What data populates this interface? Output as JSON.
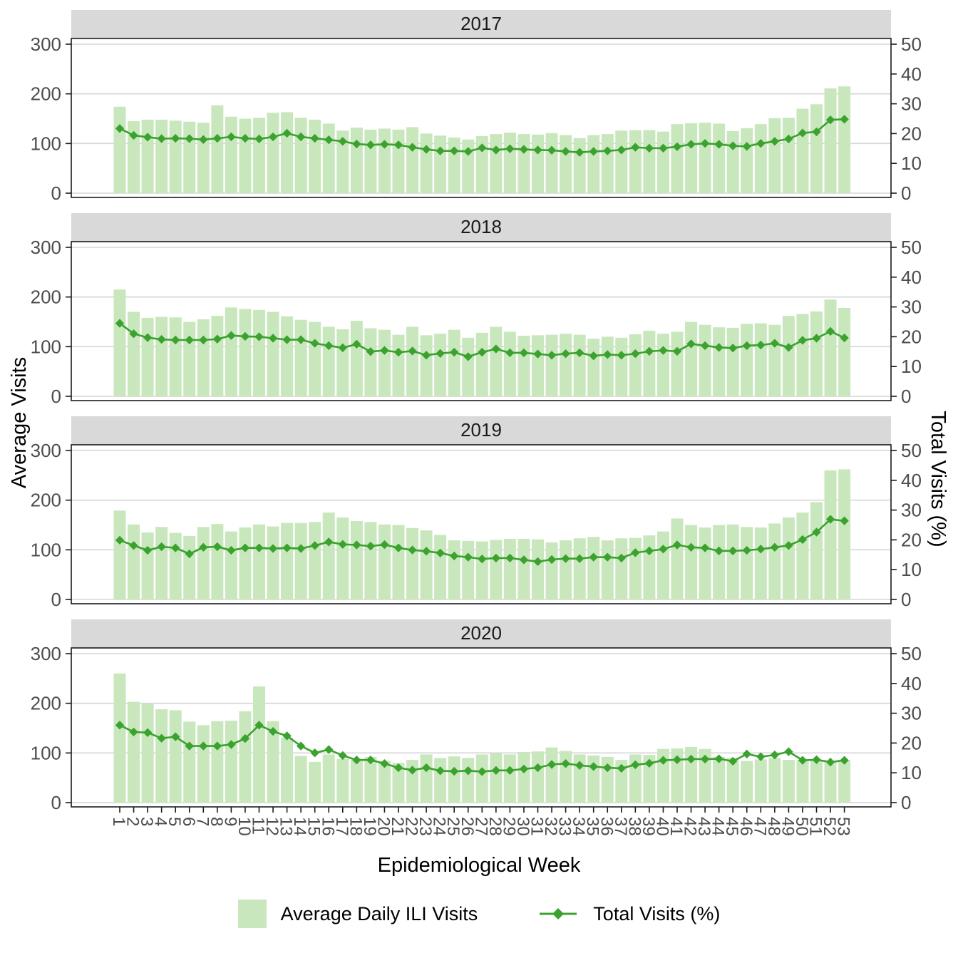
{
  "chart_data": {
    "type": "bar",
    "subtype": "faceted bar + line (dual axis)",
    "facet_titles": [
      "2017",
      "2018",
      "2019",
      "2020"
    ],
    "x": {
      "label": "Epidemiological Week",
      "ticks": [
        "1",
        "2",
        "3",
        "4",
        "5",
        "6",
        "7",
        "8",
        "9",
        "10",
        "11",
        "12",
        "13",
        "14",
        "15",
        "16",
        "17",
        "18",
        "19",
        "20",
        "21",
        "22",
        "23",
        "24",
        "25",
        "26",
        "27",
        "28",
        "29",
        "30",
        "31",
        "32",
        "33",
        "34",
        "35",
        "36",
        "37",
        "38",
        "39",
        "40",
        "41",
        "42",
        "43",
        "44",
        "45",
        "46",
        "47",
        "48",
        "49",
        "50",
        "51",
        "52",
        "53"
      ]
    },
    "y_left": {
      "label": "Average Visits",
      "ticks": [
        0,
        100,
        200,
        300
      ],
      "lim": [
        0,
        300
      ]
    },
    "y_right": {
      "label": "Total Visits (%)",
      "ticks": [
        0,
        10,
        20,
        30,
        40,
        50
      ],
      "lim": [
        0,
        50
      ]
    },
    "legend": {
      "bar_label": "Average Daily ILI Visits",
      "line_label": "Total Visits (%)"
    },
    "legend_position": "bottom",
    "grid": "horizontal major only",
    "facets": [
      {
        "year": "2017",
        "avg_daily_ili_visits": [
          174,
          145,
          148,
          148,
          146,
          144,
          142,
          177,
          154,
          150,
          152,
          162,
          163,
          152,
          148,
          140,
          126,
          132,
          128,
          130,
          128,
          133,
          120,
          116,
          112,
          108,
          115,
          119,
          122,
          119,
          118,
          121,
          117,
          111,
          117,
          119,
          126,
          127,
          127,
          124,
          139,
          141,
          142,
          140,
          125,
          131,
          139,
          151,
          152,
          170,
          179,
          211,
          215
        ],
        "total_visits_pct": [
          21.7,
          19.4,
          18.8,
          18.3,
          18.4,
          18.3,
          18.0,
          18.4,
          18.9,
          18.4,
          18.2,
          18.9,
          20.1,
          18.9,
          18.4,
          17.9,
          17.4,
          16.5,
          16.2,
          16.4,
          16.2,
          15.4,
          14.7,
          14.2,
          14.2,
          14.0,
          15.2,
          14.5,
          14.9,
          14.7,
          14.5,
          14.4,
          14.0,
          13.7,
          14.0,
          14.2,
          14.5,
          15.4,
          15.1,
          15.1,
          15.6,
          16.4,
          16.7,
          16.4,
          15.9,
          15.7,
          16.7,
          17.4,
          18.2,
          20.2,
          20.6,
          24.6,
          24.8
        ]
      },
      {
        "year": "2018",
        "avg_daily_ili_visits": [
          215,
          170,
          158,
          160,
          159,
          150,
          155,
          162,
          179,
          176,
          174,
          170,
          161,
          154,
          150,
          140,
          135,
          152,
          137,
          134,
          124,
          140,
          123,
          126,
          134,
          118,
          128,
          140,
          130,
          122,
          123,
          124,
          126,
          124,
          116,
          120,
          118,
          125,
          132,
          126,
          130,
          150,
          144,
          139,
          138,
          146,
          147,
          144,
          162,
          166,
          171,
          195,
          178
        ],
        "total_visits_pct": [
          24.5,
          21.0,
          19.7,
          19.1,
          18.9,
          18.9,
          18.9,
          19.2,
          20.4,
          20.1,
          20.0,
          19.5,
          19.0,
          19.0,
          17.8,
          17.0,
          16.3,
          17.5,
          15.0,
          15.4,
          14.8,
          15.2,
          13.8,
          14.4,
          14.8,
          13.3,
          14.8,
          15.9,
          14.6,
          14.6,
          14.2,
          13.8,
          14.3,
          14.6,
          13.6,
          14.0,
          13.8,
          14.3,
          15.1,
          15.4,
          15.1,
          17.6,
          17.0,
          16.4,
          16.2,
          17.0,
          17.2,
          17.8,
          16.4,
          18.8,
          19.5,
          21.8,
          19.6
        ]
      },
      {
        "year": "2019",
        "avg_daily_ili_visits": [
          179,
          151,
          135,
          146,
          134,
          128,
          146,
          152,
          137,
          145,
          151,
          147,
          154,
          154,
          156,
          175,
          165,
          158,
          156,
          151,
          150,
          144,
          139,
          130,
          119,
          118,
          117,
          120,
          122,
          122,
          121,
          115,
          119,
          123,
          126,
          119,
          123,
          124,
          129,
          137,
          163,
          150,
          145,
          150,
          151,
          146,
          145,
          153,
          165,
          175,
          196,
          260,
          262
        ],
        "total_visits_pct": [
          19.9,
          18.1,
          16.5,
          17.7,
          17.3,
          15.3,
          17.5,
          17.7,
          16.5,
          17.3,
          17.3,
          17.1,
          17.3,
          17.1,
          18.1,
          19.3,
          18.5,
          18.3,
          17.9,
          18.4,
          17.3,
          16.6,
          16.2,
          15.6,
          14.6,
          14.2,
          13.6,
          13.9,
          13.9,
          13.3,
          12.7,
          13.4,
          13.7,
          13.7,
          14.2,
          14.2,
          13.9,
          15.7,
          16.3,
          16.9,
          18.3,
          17.5,
          17.3,
          16.3,
          16.3,
          16.5,
          16.9,
          17.5,
          18.1,
          20.1,
          22.6,
          26.9,
          26.4
        ]
      },
      {
        "year": "2020",
        "avg_daily_ili_visits": [
          260,
          203,
          200,
          188,
          186,
          163,
          156,
          164,
          165,
          184,
          234,
          164,
          131,
          94,
          82,
          97,
          88,
          87,
          92,
          84,
          80,
          86,
          97,
          90,
          93,
          90,
          97,
          99,
          97,
          102,
          103,
          111,
          104,
          97,
          95,
          92,
          86,
          97,
          96,
          108,
          109,
          112,
          108,
          92,
          90,
          84,
          87,
          90,
          86,
          85,
          85,
          84,
          86
        ],
        "total_visits_pct": [
          26.0,
          23.7,
          23.5,
          21.6,
          22.1,
          19.0,
          19.0,
          19.0,
          19.5,
          21.5,
          26.0,
          23.9,
          22.4,
          19.0,
          16.7,
          17.8,
          15.8,
          14.3,
          14.3,
          13.1,
          11.7,
          10.9,
          11.7,
          10.7,
          10.5,
          10.7,
          10.4,
          10.8,
          10.8,
          11.3,
          11.7,
          12.8,
          13.1,
          12.5,
          12.1,
          11.7,
          11.5,
          12.7,
          13.2,
          14.2,
          14.4,
          14.6,
          14.6,
          14.7,
          13.9,
          16.3,
          15.4,
          16.0,
          17.1,
          14.2,
          14.4,
          13.6,
          14.2
        ]
      }
    ]
  },
  "colors": {
    "bar_fill": "#c9e7bd",
    "line": "#3ba22f",
    "strip_bg": "#d9d9d9",
    "strip_text": "#1a1a1a",
    "grid": "#d6d6d6",
    "axis_text": "#4d4d4d",
    "panel_border": "#1a1a1a",
    "background": "#ffffff"
  }
}
